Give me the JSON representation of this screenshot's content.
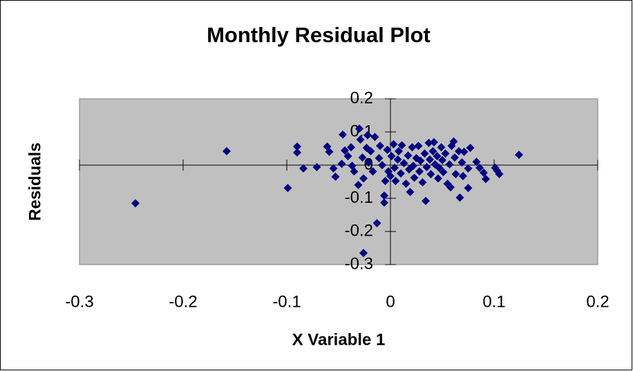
{
  "chart_data": {
    "type": "scatter",
    "title": "Monthly Residual Plot",
    "x_label": "X Variable 1",
    "y_label": "Residuals",
    "series": [
      {
        "name": "Residuals",
        "color": "#000080",
        "x": [
          -0.246,
          -0.158,
          -0.099,
          -0.09,
          -0.09,
          -0.084,
          -0.071,
          -0.061,
          -0.059,
          -0.055,
          -0.053,
          -0.047,
          -0.046,
          -0.044,
          -0.041,
          -0.038,
          -0.037,
          -0.035,
          -0.031,
          -0.03,
          -0.029,
          -0.027,
          -0.026,
          -0.026,
          -0.023,
          -0.022,
          -0.021,
          -0.019,
          -0.017,
          -0.015,
          -0.013,
          -0.011,
          -0.01,
          -0.008,
          -0.006,
          -0.006,
          -0.005,
          -0.003,
          -0.002,
          0,
          0.001,
          0.003,
          0.004,
          0.005,
          0.007,
          0.008,
          0.01,
          0.011,
          0.013,
          0.015,
          0.017,
          0.018,
          0.019,
          0.021,
          0.022,
          0.023,
          0.025,
          0.027,
          0.028,
          0.029,
          0.031,
          0.033,
          0.034,
          0.035,
          0.037,
          0.038,
          0.039,
          0.041,
          0.042,
          0.043,
          0.045,
          0.046,
          0.047,
          0.049,
          0.05,
          0.051,
          0.053,
          0.055,
          0.057,
          0.058,
          0.059,
          0.061,
          0.062,
          0.063,
          0.066,
          0.067,
          0.069,
          0.07,
          0.071,
          0.075,
          0.075,
          0.077,
          0.083,
          0.086,
          0.09,
          0.092,
          0.101,
          0.103,
          0.105,
          0.124
        ],
        "values": [
          -0.115,
          0.042,
          -0.069,
          0.056,
          0.038,
          -0.01,
          -0.006,
          0.056,
          0.04,
          -0.01,
          -0.035,
          0.004,
          0.092,
          0.044,
          0.027,
          0.054,
          -0.002,
          -0.019,
          -0.06,
          0.11,
          0.077,
          0.023,
          -0.04,
          -0.265,
          0.052,
          0.09,
          0.008,
          0.042,
          -0.019,
          0.085,
          -0.175,
          0.021,
          0.058,
          0,
          -0.092,
          -0.113,
          -0.048,
          0.046,
          -0.019,
          -0.033,
          0.027,
          0.063,
          -0.008,
          -0.048,
          0.017,
          0.042,
          -0.025,
          0.06,
          0.006,
          -0.056,
          0.029,
          -0.013,
          -0.081,
          0.054,
          -0.002,
          -0.038,
          0.021,
          0.058,
          -0.019,
          0.013,
          -0.052,
          0.035,
          -0.108,
          -0.006,
          0.067,
          0.017,
          -0.027,
          0.042,
          0.069,
          0.002,
          0.027,
          -0.04,
          -0.008,
          0.054,
          0.015,
          -0.021,
          0.035,
          -0.056,
          0.002,
          -0.067,
          0.058,
          0.071,
          0.023,
          -0.027,
          0.042,
          -0.098,
          0.008,
          -0.033,
          0.04,
          -0.01,
          -0.069,
          0.052,
          0.01,
          -0.008,
          -0.023,
          -0.042,
          -0.008,
          -0.017,
          -0.027,
          0.031
        ]
      }
    ],
    "xlim": [
      -0.3,
      0.2
    ],
    "xticks": [
      -0.3,
      -0.2,
      -0.1,
      0,
      0.1,
      0.2
    ],
    "ylim": [
      -0.3,
      0.2
    ],
    "yticks": [
      -0.3,
      -0.2,
      -0.1,
      0,
      0.1,
      0.2
    ]
  }
}
